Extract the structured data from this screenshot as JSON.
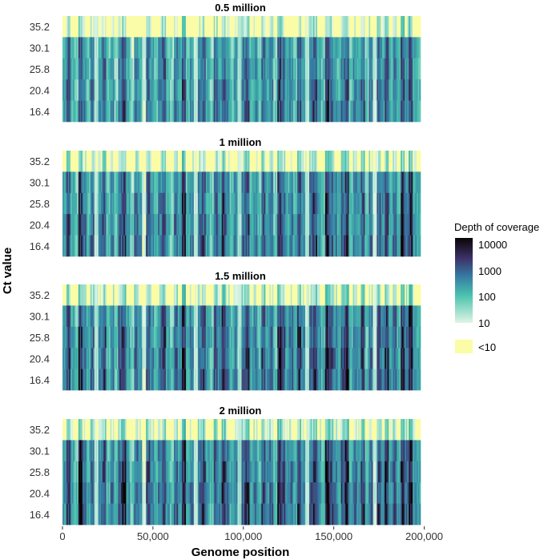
{
  "chart_data": {
    "type": "heatmap",
    "xlabel": "Genome position",
    "ylabel": "Ct value",
    "xlim": [
      0,
      198000
    ],
    "x_ticks": [
      0,
      50000,
      100000,
      150000,
      200000
    ],
    "x_tick_labels": [
      "0",
      "50,000",
      "100,000",
      "150,000",
      "200,000"
    ],
    "rows": [
      "35.2",
      "30.1",
      "25.8",
      "20.4",
      "16.4"
    ],
    "panels": [
      {
        "title": "0.5 million",
        "offset": 0.0
      },
      {
        "title": "1 million",
        "offset": 0.15
      },
      {
        "title": "1.5 million",
        "offset": 0.25
      },
      {
        "title": "2 million",
        "offset": 0.3
      }
    ],
    "row_offsets": [
      -1.7,
      0.0,
      0.1,
      0.15,
      0.2
    ],
    "value_scale": "log10 depth of coverage",
    "column_profile_log10": [
      2.2,
      3.1,
      2.0,
      1.6,
      3.3,
      2.6,
      1.9,
      2.8,
      0.8,
      2.4,
      3.0,
      1.7,
      2.5,
      1.5,
      2.9,
      3.2,
      2.1,
      1.4,
      2.7,
      2.3,
      0.6,
      3.0,
      2.4,
      1.8,
      2.6,
      3.1,
      2.0,
      1.5,
      2.8,
      2.2,
      3.3,
      1.9,
      2.5,
      0.7,
      2.7,
      3.0,
      2.1,
      1.6,
      2.9,
      2.3,
      3.2,
      2.6,
      1.8,
      2.4,
      0.9,
      2.8,
      3.1,
      2.0,
      2.5,
      1.7,
      3.0,
      2.2,
      2.7,
      1.5,
      3.3,
      2.9,
      2.1,
      2.6,
      1.9,
      3.1,
      2.4,
      0.8,
      2.8,
      3.2,
      2.3,
      1.7,
      3.4,
      3.0,
      2.5,
      2.0,
      2.9,
      3.3,
      1.8,
      2.6,
      2.2,
      3.1,
      1.6,
      2.7,
      0.7,
      3.0,
      2.4,
      3.2,
      2.1,
      2.8,
      1.9,
      3.3,
      2.6,
      3.4,
      2.2,
      2.0
    ],
    "legend": {
      "title": "Depth of coverage",
      "ticks": [
        "10000",
        "1000",
        "100",
        "10"
      ],
      "na_label": "<10",
      "placement": "right"
    },
    "colors": {
      "na": "#fbfca6",
      "c10": "#def5e5",
      "c100": "#49c1ad",
      "c1000": "#357ba3",
      "c10000": "#0b0405"
    }
  }
}
